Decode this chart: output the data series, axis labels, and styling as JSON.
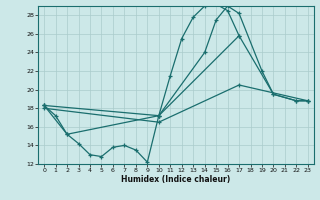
{
  "xlabel": "Humidex (Indice chaleur)",
  "bg_color": "#cce8e8",
  "grid_color": "#aacccc",
  "line_color": "#1a6e6e",
  "xlim": [
    -0.5,
    23.5
  ],
  "ylim": [
    12,
    29
  ],
  "yticks": [
    12,
    14,
    16,
    18,
    20,
    22,
    24,
    26,
    28
  ],
  "xticks": [
    0,
    1,
    2,
    3,
    4,
    5,
    6,
    7,
    8,
    9,
    10,
    11,
    12,
    13,
    14,
    15,
    16,
    17,
    18,
    19,
    20,
    21,
    22,
    23
  ],
  "line1_x": [
    0,
    1,
    2,
    3,
    4,
    5,
    6,
    7,
    8,
    9,
    10,
    11,
    12,
    13,
    14,
    15,
    16,
    17
  ],
  "line1_y": [
    18.3,
    17.2,
    15.2,
    14.2,
    13.0,
    12.8,
    13.8,
    14.0,
    13.5,
    12.2,
    17.2,
    21.5,
    25.5,
    27.8,
    29.0,
    29.2,
    28.5,
    25.8
  ],
  "line2_x": [
    0,
    10,
    14,
    15,
    16,
    17,
    19,
    20,
    22,
    23
  ],
  "line2_y": [
    18.3,
    17.2,
    24.0,
    27.5,
    29.0,
    28.2,
    22.0,
    19.5,
    18.8,
    18.8
  ],
  "line3_x": [
    0,
    2,
    10,
    17,
    20,
    22,
    23
  ],
  "line3_y": [
    18.3,
    15.2,
    17.2,
    25.8,
    19.5,
    18.8,
    18.8
  ],
  "line4_x": [
    0,
    10,
    17,
    23
  ],
  "line4_y": [
    18.0,
    16.5,
    20.5,
    18.8
  ]
}
